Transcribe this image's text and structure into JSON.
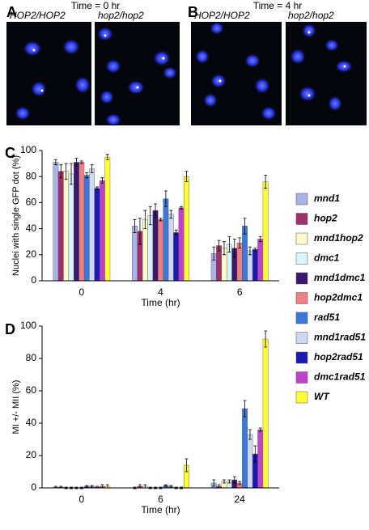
{
  "panels": [
    {
      "letter": "A",
      "title": "Time = 0 hr",
      "images": [
        "HOP2/HOP2",
        "hop2/hop2"
      ]
    },
    {
      "letter": "B",
      "title": "Time = 4 hr",
      "images": [
        "HOP2/HOP2",
        "hop2/hop2"
      ]
    }
  ],
  "chart_data": [
    {
      "type": "bar",
      "panel_label": "C",
      "ylabel": "Nuclei with single GFP dot (%)",
      "xlabel": "Time (hr)",
      "categories": [
        "0",
        "4",
        "6"
      ],
      "ylim": [
        0,
        100
      ],
      "yticks": [
        0,
        20,
        40,
        60,
        80,
        100
      ],
      "series": [
        {
          "name": "mnd1",
          "color": "#a9b3e8",
          "values": [
            91,
            42,
            21
          ],
          "errors": [
            2,
            5,
            5
          ]
        },
        {
          "name": "hop2",
          "color": "#a0306a",
          "values": [
            84,
            38,
            27
          ],
          "errors": [
            5,
            10,
            4
          ]
        },
        {
          "name": "mnd1hop2",
          "color": "#fffacc",
          "values": [
            84,
            47,
            25
          ],
          "errors": [
            6,
            7,
            5
          ]
        },
        {
          "name": "dmc1",
          "color": "#d9f6f6",
          "values": [
            82,
            50,
            28
          ],
          "errors": [
            8,
            7,
            6
          ]
        },
        {
          "name": "mnd1dmc1",
          "color": "#3a1870",
          "values": [
            91,
            54,
            25
          ],
          "errors": [
            3,
            5,
            7
          ]
        },
        {
          "name": "hop2dmc1",
          "color": "#f08080",
          "values": [
            91,
            47,
            29
          ],
          "errors": [
            1,
            1,
            4
          ]
        },
        {
          "name": "rad51",
          "color": "#3c78dc",
          "values": [
            81,
            63,
            42
          ],
          "errors": [
            2,
            6,
            6
          ]
        },
        {
          "name": "mnd1rad51",
          "color": "#d0d8f0",
          "values": [
            86,
            51,
            23
          ],
          "errors": [
            3,
            3,
            3
          ]
        },
        {
          "name": "hop2rad51",
          "color": "#1a1ab0",
          "values": [
            71,
            37,
            24
          ],
          "errors": [
            1,
            2,
            1
          ]
        },
        {
          "name": "dmc1rad51",
          "color": "#c040d0",
          "values": [
            77,
            56,
            32
          ],
          "errors": [
            2,
            1,
            2
          ]
        },
        {
          "name": "WT",
          "color": "#ffff33",
          "values": [
            95,
            80,
            76
          ],
          "errors": [
            2,
            4,
            5
          ]
        }
      ]
    },
    {
      "type": "bar",
      "panel_label": "D",
      "ylabel": "MI +/- MII (%)",
      "xlabel": "Time (hr)",
      "categories": [
        "0",
        "6",
        "24"
      ],
      "ylim": [
        0,
        100
      ],
      "yticks": [
        0,
        20,
        40,
        60,
        80,
        100
      ],
      "series": [
        {
          "color": "#a9b3e8",
          "values": [
            0.5,
            0,
            3
          ],
          "errors": [
            0.5,
            0.5,
            2
          ]
        },
        {
          "color": "#a0306a",
          "values": [
            0.5,
            1,
            1
          ],
          "errors": [
            0.5,
            1,
            1
          ]
        },
        {
          "color": "#fffacc",
          "values": [
            0,
            1,
            4
          ],
          "errors": [
            0.5,
            1,
            1
          ]
        },
        {
          "color": "#d9f6f6",
          "values": [
            0,
            0,
            4
          ],
          "errors": [
            0.5,
            0.5,
            1
          ]
        },
        {
          "color": "#3a1870",
          "values": [
            0,
            0,
            5
          ],
          "errors": [
            0.5,
            0.5,
            2
          ]
        },
        {
          "color": "#f08080",
          "values": [
            0,
            0,
            3
          ],
          "errors": [
            0.5,
            0.5,
            1
          ]
        },
        {
          "color": "#3c78dc",
          "values": [
            1,
            1.5,
            49
          ],
          "errors": [
            0.5,
            0.5,
            5
          ]
        },
        {
          "color": "#d0d8f0",
          "values": [
            1,
            1,
            33
          ],
          "errors": [
            0.5,
            0.5,
            3
          ]
        },
        {
          "color": "#1a1ab0",
          "values": [
            0.5,
            0,
            21
          ],
          "errors": [
            0.5,
            0.5,
            5
          ]
        },
        {
          "color": "#c040d0",
          "values": [
            1,
            0,
            36
          ],
          "errors": [
            1,
            0.5,
            1
          ]
        },
        {
          "color": "#ffff33",
          "values": [
            1,
            14,
            92
          ],
          "errors": [
            1,
            4,
            5
          ]
        }
      ]
    }
  ]
}
